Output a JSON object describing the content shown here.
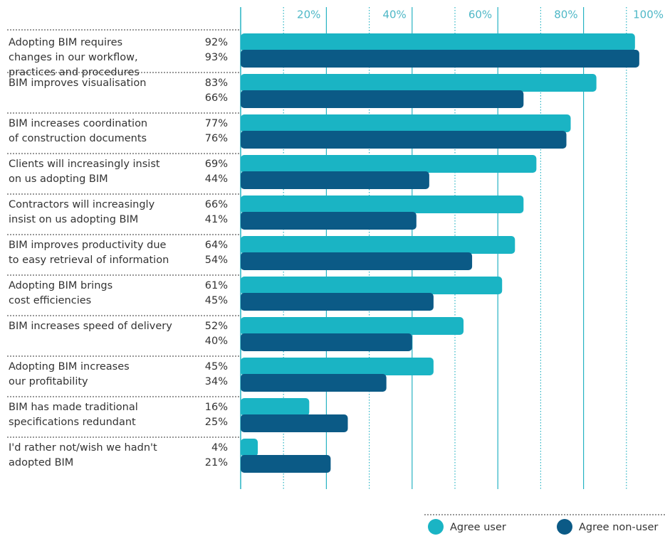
{
  "chart_data": {
    "type": "bar",
    "orientation": "horizontal",
    "categories": [
      [
        "Adopting BIM requires",
        "changes in our workflow,",
        "practices and procedures"
      ],
      [
        "BIM improves visualisation"
      ],
      [
        "BIM increases coordination",
        "of construction documents"
      ],
      [
        "Clients will increasingly insist",
        "on us adopting BIM"
      ],
      [
        "Contractors will increasingly",
        "insist on us adopting BIM"
      ],
      [
        "BIM improves productivity due",
        "to easy retrieval of information"
      ],
      [
        "Adopting BIM brings",
        "cost efficiencies"
      ],
      [
        "BIM increases speed of delivery"
      ],
      [
        "Adopting BIM increases",
        "our profitability"
      ],
      [
        "BIM has made traditional",
        "specifications redundant"
      ],
      [
        "I'd rather not/wish we hadn't",
        "adopted BIM"
      ]
    ],
    "series": [
      {
        "name": "Agree user",
        "color": "#1ab4c4",
        "values": [
          92,
          83,
          77,
          69,
          66,
          64,
          61,
          52,
          45,
          16,
          4
        ],
        "value_labels": [
          "92%",
          "83%",
          "77%",
          "69%",
          "66%",
          "64%",
          "61%",
          "52%",
          "45%",
          "16%",
          "4%"
        ]
      },
      {
        "name": "Agree non-user",
        "color": "#0b5a86",
        "values": [
          93,
          66,
          76,
          44,
          41,
          54,
          45,
          40,
          34,
          25,
          21
        ],
        "value_labels": [
          "93%",
          "66%",
          "76%",
          "44%",
          "41%",
          "54%",
          "45%",
          "40%",
          "34%",
          "25%",
          "21%"
        ]
      }
    ],
    "xlim": [
      0,
      100
    ],
    "xticks": [
      {
        "value": 20,
        "label": "20%"
      },
      {
        "value": 40,
        "label": "40%"
      },
      {
        "value": 60,
        "label": "60%"
      },
      {
        "value": 80,
        "label": "80%"
      },
      {
        "value": 100,
        "label": "100%"
      }
    ],
    "xminor_ticks": [
      10,
      30,
      50,
      70,
      90
    ],
    "grid": true,
    "legend": "bottom-right"
  }
}
